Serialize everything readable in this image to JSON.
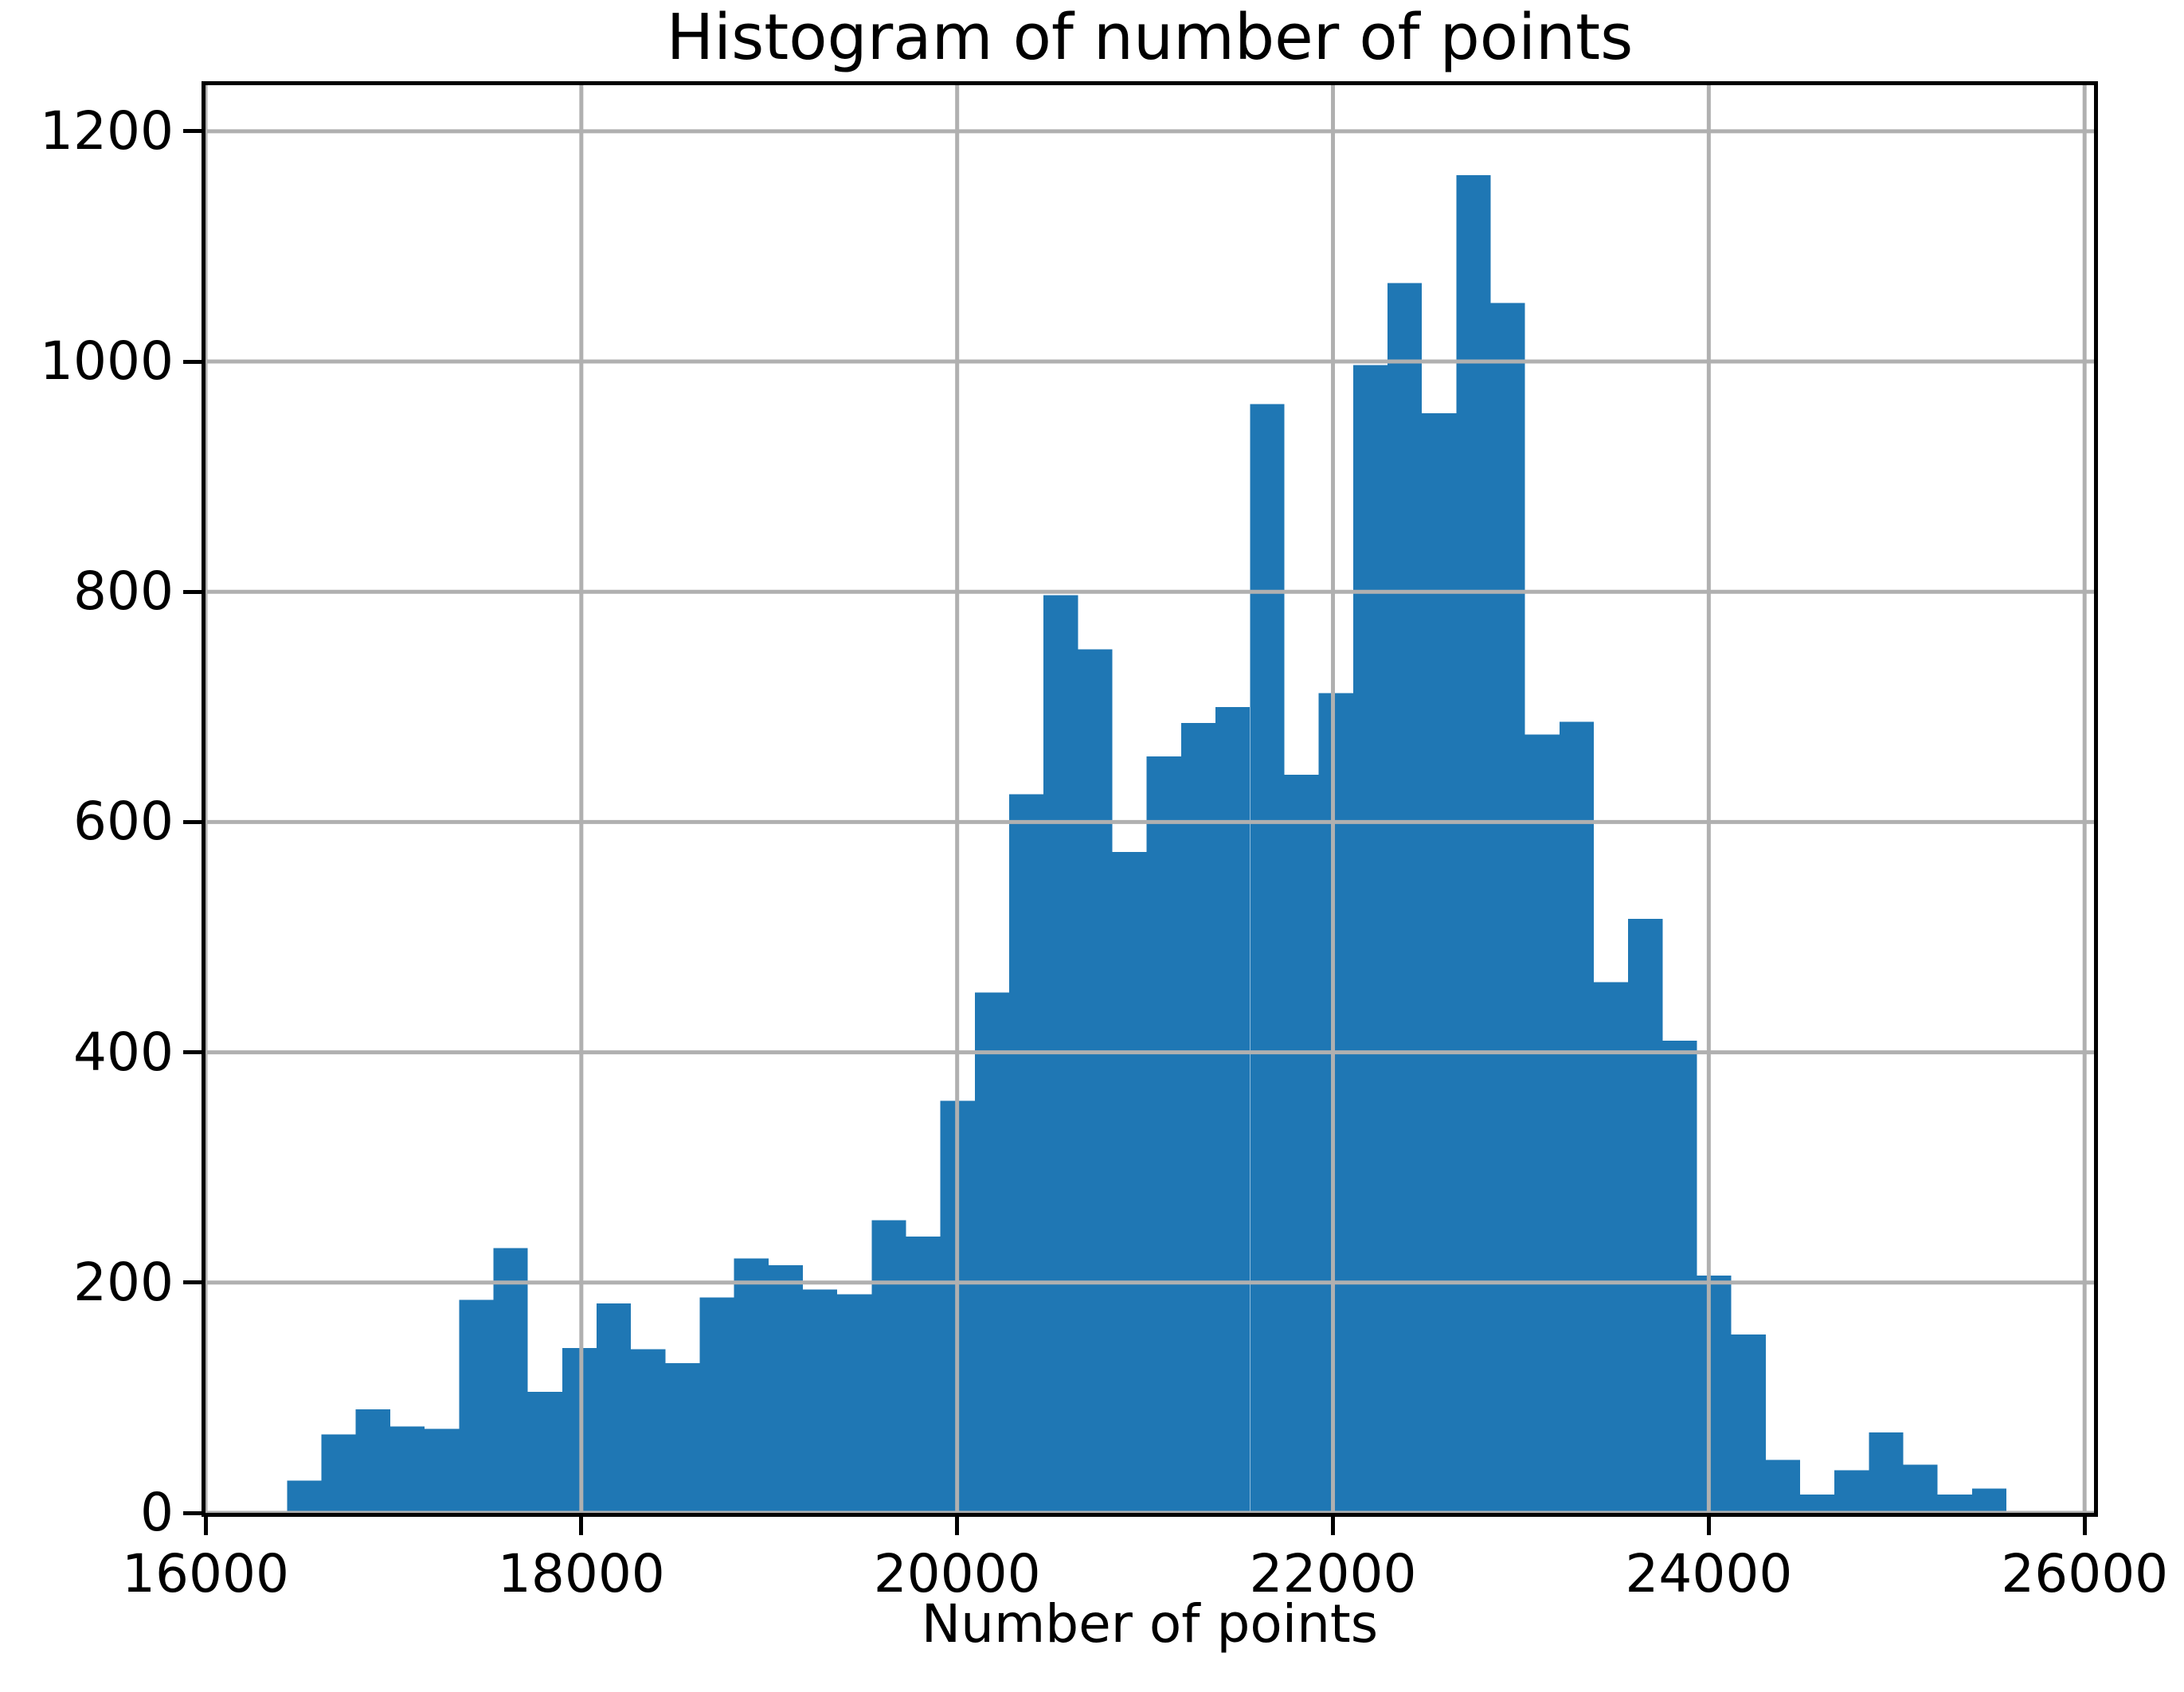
{
  "figure": {
    "background": "#ffffff"
  },
  "chart_data": {
    "type": "bar",
    "subtype": "histogram",
    "title": "Histogram of number of points",
    "xlabel": "Number of points",
    "ylabel": "",
    "bin_start": 16434,
    "bin_width": 183,
    "counts": [
      28,
      68,
      90,
      75,
      73,
      185,
      230,
      105,
      143,
      182,
      142,
      130,
      187,
      221,
      215,
      194,
      190,
      254,
      240,
      358,
      452,
      624,
      797,
      750,
      574,
      657,
      686,
      700,
      963,
      641,
      712,
      997,
      1068,
      955,
      1162,
      1051,
      676,
      687,
      461,
      516,
      410,
      206,
      155,
      46,
      16,
      37,
      70,
      42,
      16,
      21
    ],
    "xlim": [
      16000,
      26050
    ],
    "ylim": [
      0,
      1240
    ],
    "xticks": [
      16000,
      18000,
      20000,
      22000,
      24000,
      26000
    ],
    "yticks": [
      0,
      200,
      400,
      600,
      800,
      1000,
      1200
    ],
    "grid": true,
    "grid_over_bars": true,
    "legend": null,
    "bar_color": "#1f77b4",
    "grid_color": "#b0b0b0",
    "axis_color": "#000000",
    "text_color": "#000000"
  }
}
